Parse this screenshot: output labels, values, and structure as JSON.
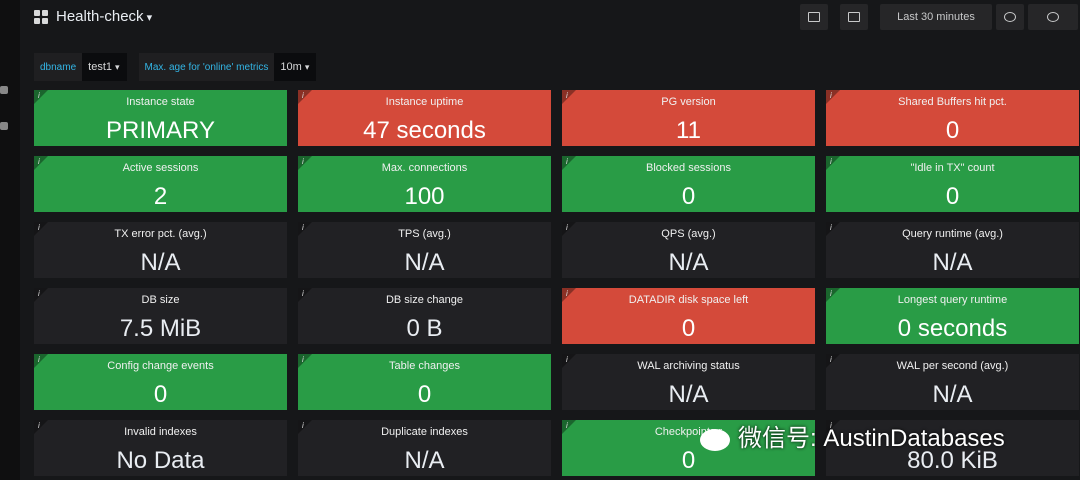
{
  "header": {
    "title": "Health-check",
    "time_range": "Last 30 minutes"
  },
  "variables": [
    {
      "label": "dbname",
      "value": "test1"
    },
    {
      "label": "Max. age for 'online' metrics",
      "value": "10m"
    }
  ],
  "panels": [
    {
      "title": "Instance state",
      "value": "PRIMARY",
      "state": "green"
    },
    {
      "title": "Instance uptime",
      "value": "47 seconds",
      "state": "red"
    },
    {
      "title": "PG version",
      "value": "11",
      "state": "red"
    },
    {
      "title": "Shared Buffers hit pct.",
      "value": "0",
      "state": "red"
    },
    {
      "title": "Active sessions",
      "value": "2",
      "state": "green"
    },
    {
      "title": "Max. connections",
      "value": "100",
      "state": "green"
    },
    {
      "title": "Blocked sessions",
      "value": "0",
      "state": "green"
    },
    {
      "title": "\"Idle in TX\" count",
      "value": "0",
      "state": "green"
    },
    {
      "title": "TX error pct. (avg.)",
      "value": "N/A",
      "state": "dark"
    },
    {
      "title": "TPS (avg.)",
      "value": "N/A",
      "state": "dark"
    },
    {
      "title": "QPS (avg.)",
      "value": "N/A",
      "state": "dark"
    },
    {
      "title": "Query runtime (avg.)",
      "value": "N/A",
      "state": "dark"
    },
    {
      "title": "DB size",
      "value": "7.5 MiB",
      "state": "dark"
    },
    {
      "title": "DB size change",
      "value": "0 B",
      "state": "dark"
    },
    {
      "title": "DATADIR disk space left",
      "value": "0",
      "state": "red"
    },
    {
      "title": "Longest query runtime",
      "value": "0 seconds",
      "state": "green"
    },
    {
      "title": "Config change events",
      "value": "0",
      "state": "green"
    },
    {
      "title": "Table changes",
      "value": "0",
      "state": "green"
    },
    {
      "title": "WAL archiving status",
      "value": "N/A",
      "state": "dark"
    },
    {
      "title": "WAL per second (avg.)",
      "value": "N/A",
      "state": "dark"
    },
    {
      "title": "Invalid indexes",
      "value": "No Data",
      "state": "dark"
    },
    {
      "title": "Duplicate indexes",
      "value": "N/A",
      "state": "dark"
    },
    {
      "title": "Checkpoints r",
      "value": "0",
      "state": "green"
    },
    {
      "value": "80.0 KiB",
      "state": "dark"
    }
  ],
  "watermark": "微信号: AustinDatabases"
}
